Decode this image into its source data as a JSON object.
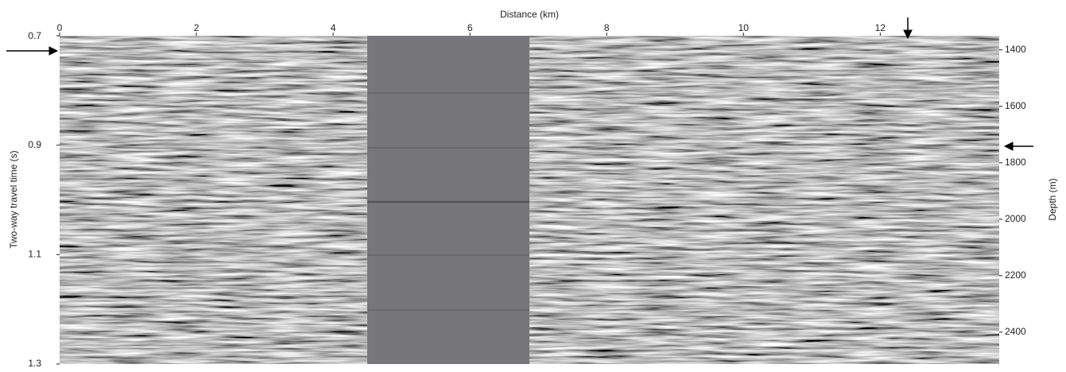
{
  "chart_data": {
    "type": "image",
    "xlabel": "Distance (km)",
    "ylabel": "Two-way travel time (s)",
    "y2label": "Depth (m)",
    "xlim": [
      0,
      13.74
    ],
    "xticks": [
      0,
      2,
      4,
      6,
      8,
      10,
      12
    ],
    "ylim": [
      0.7,
      1.3
    ],
    "yticks": [
      0.7,
      0.9,
      1.1,
      1.3
    ],
    "y2lim": [
      1350,
      2513
    ],
    "y2ticks": [
      1400,
      1600,
      1800,
      2000,
      2200,
      2400
    ]
  }
}
